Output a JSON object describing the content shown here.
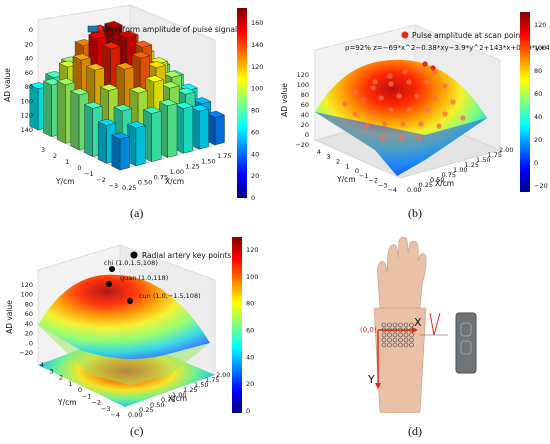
{
  "captions": [
    "(a)",
    "(b)",
    "(c)",
    "(d)"
  ],
  "colors": {
    "jet": [
      "#00007f",
      "#0000ff",
      "#007fff",
      "#00ffff",
      "#7fff7f",
      "#ffff00",
      "#ff7f00",
      "#ff0000",
      "#7f0000"
    ],
    "red_marker": "#e8281e",
    "black_marker": "#000000",
    "arrow_red": "#d42a1e",
    "skin": "#e8c1a7",
    "device": "#6f7479"
  },
  "chart_data": [
    {
      "type": "bar3d",
      "legend": "Waveform amplitude of pulse signal",
      "zlabel": "AD value",
      "ylabel": "Y/cm",
      "xlabel": "X/cm",
      "zticks": [
        "0",
        "20",
        "40",
        "60",
        "80",
        "100",
        "120",
        "140"
      ],
      "yticks": [
        "3",
        "2",
        "1",
        "0",
        "−1",
        "−2",
        "−3"
      ],
      "xticks": [
        "0.25",
        "0.50",
        "0.75",
        "1.00",
        "1.25",
        "1.50",
        "1.75"
      ],
      "colorbar_ticks": [
        "160",
        "140",
        "120",
        "100",
        "80",
        "60",
        "40",
        "20",
        "0"
      ],
      "colorbar_range": [
        0,
        160
      ],
      "x": [
        0.25,
        0.5,
        0.75,
        1.0,
        1.25,
        1.5,
        1.75
      ],
      "y": [
        -3,
        -2,
        -1,
        0,
        1,
        2,
        3
      ],
      "values": [
        [
          60,
          70,
          85,
          95,
          80,
          65,
          50
        ],
        [
          75,
          95,
          120,
          135,
          110,
          85,
          65
        ],
        [
          85,
          115,
          140,
          150,
          130,
          100,
          75
        ],
        [
          80,
          110,
          135,
          145,
          125,
          95,
          70
        ],
        [
          70,
          90,
          115,
          125,
          105,
          85,
          60
        ],
        [
          55,
          70,
          90,
          100,
          85,
          70,
          50
        ],
        [
          45,
          55,
          70,
          75,
          65,
          55,
          40
        ]
      ]
    },
    {
      "type": "surface3d",
      "legend": "Pulse amplitude at scan point",
      "equation": "ρ=92%  z=−69*x^2−0.38*xy−3.9*y^2+143*x+0.29*y+44",
      "zlabel": "AD value",
      "ylabel": "Y/cm",
      "xlabel": "X/cm",
      "zticks": [
        "120",
        "100",
        "80",
        "60",
        "40",
        "20",
        "0",
        "−20"
      ],
      "yticks": [
        "4",
        "3",
        "2",
        "1",
        "0",
        "−1",
        "−2",
        "−3",
        "−4"
      ],
      "xticks": [
        "0.00",
        "0.25",
        "0.50",
        "0.75",
        "1.00",
        "1.25",
        "1.50",
        "1.75",
        "2.00"
      ],
      "colorbar_ticks": [
        "120",
        "100",
        "80",
        "60",
        "40",
        "20",
        "0",
        "−20"
      ],
      "colorbar_range": [
        -20,
        130
      ]
    },
    {
      "type": "surface3d",
      "legend": "Radial artery key points",
      "zlabel": "AD value",
      "ylabel": "Y/cm",
      "xlabel": "X/cm",
      "zticks": [
        "120",
        "100",
        "80",
        "60",
        "40",
        "20",
        "0",
        "−20"
      ],
      "yticks": [
        "4",
        "3",
        "2",
        "1",
        "0",
        "−1",
        "−2",
        "−3",
        "−4"
      ],
      "xticks": [
        "0.00",
        "0.25",
        "0.50",
        "0.75",
        "1.00",
        "1.25",
        "1.50",
        "1.75",
        "2.00"
      ],
      "colorbar_ticks": [
        "120",
        "100",
        "80",
        "60",
        "40",
        "20",
        "0"
      ],
      "colorbar_range": [
        0,
        120
      ],
      "points": [
        {
          "label": "chi (1.0,1.5,108)",
          "x": 1.0,
          "y": 1.5,
          "z": 108
        },
        {
          "label": "guan (1.0,118)",
          "x": 1.0,
          "y": 0,
          "z": 118
        },
        {
          "label": "cun (1.0,−1.5,108)",
          "x": 1.0,
          "y": -1.5,
          "z": 108
        }
      ]
    },
    {
      "type": "illustration",
      "origin_label": "(0,0)",
      "x_label": "X",
      "y_label": "Y"
    }
  ]
}
